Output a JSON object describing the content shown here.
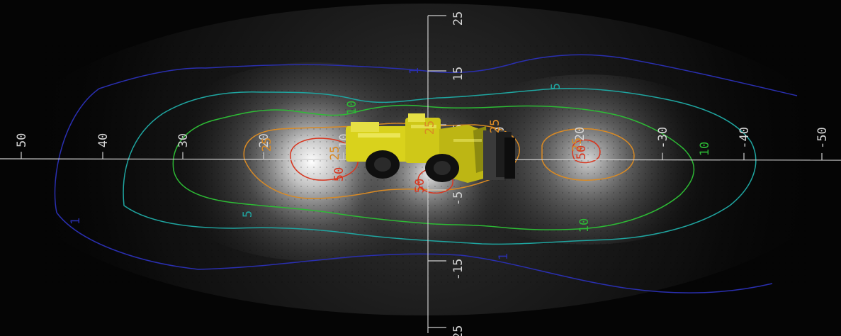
{
  "x_axis": {
    "ticks": [
      {
        "label": "50"
      },
      {
        "label": "40"
      },
      {
        "label": "30"
      },
      {
        "label": "20"
      },
      {
        "label": "10"
      },
      {
        "label": "-10"
      },
      {
        "label": "-20"
      },
      {
        "label": "-30"
      },
      {
        "label": "-40"
      },
      {
        "label": "-50"
      }
    ]
  },
  "y_axis": {
    "ticks": [
      {
        "label": "25"
      },
      {
        "label": "15"
      },
      {
        "label": "5"
      },
      {
        "label": "-5"
      },
      {
        "label": "-15"
      },
      {
        "label": "-25"
      }
    ]
  },
  "contours": [
    {
      "label": "1",
      "color": "#2a2fb0"
    },
    {
      "label": "5",
      "color": "#1fa5a0"
    },
    {
      "label": "10",
      "color": "#2dbb35"
    },
    {
      "label": "25",
      "color": "#d98a24"
    },
    {
      "label": "50",
      "color": "#d8361f"
    }
  ],
  "contour_labels": [
    {
      "text": "1"
    },
    {
      "text": "1"
    },
    {
      "text": "1"
    },
    {
      "text": "5"
    },
    {
      "text": "5"
    },
    {
      "text": "10"
    },
    {
      "text": "10"
    },
    {
      "text": "10"
    },
    {
      "text": "25"
    },
    {
      "text": "25"
    },
    {
      "text": "25"
    },
    {
      "text": "25"
    },
    {
      "text": "25"
    },
    {
      "text": "50"
    },
    {
      "text": "50"
    },
    {
      "text": "50"
    }
  ],
  "machine": {
    "name": "loader-icon",
    "color": "#d9d21c"
  }
}
